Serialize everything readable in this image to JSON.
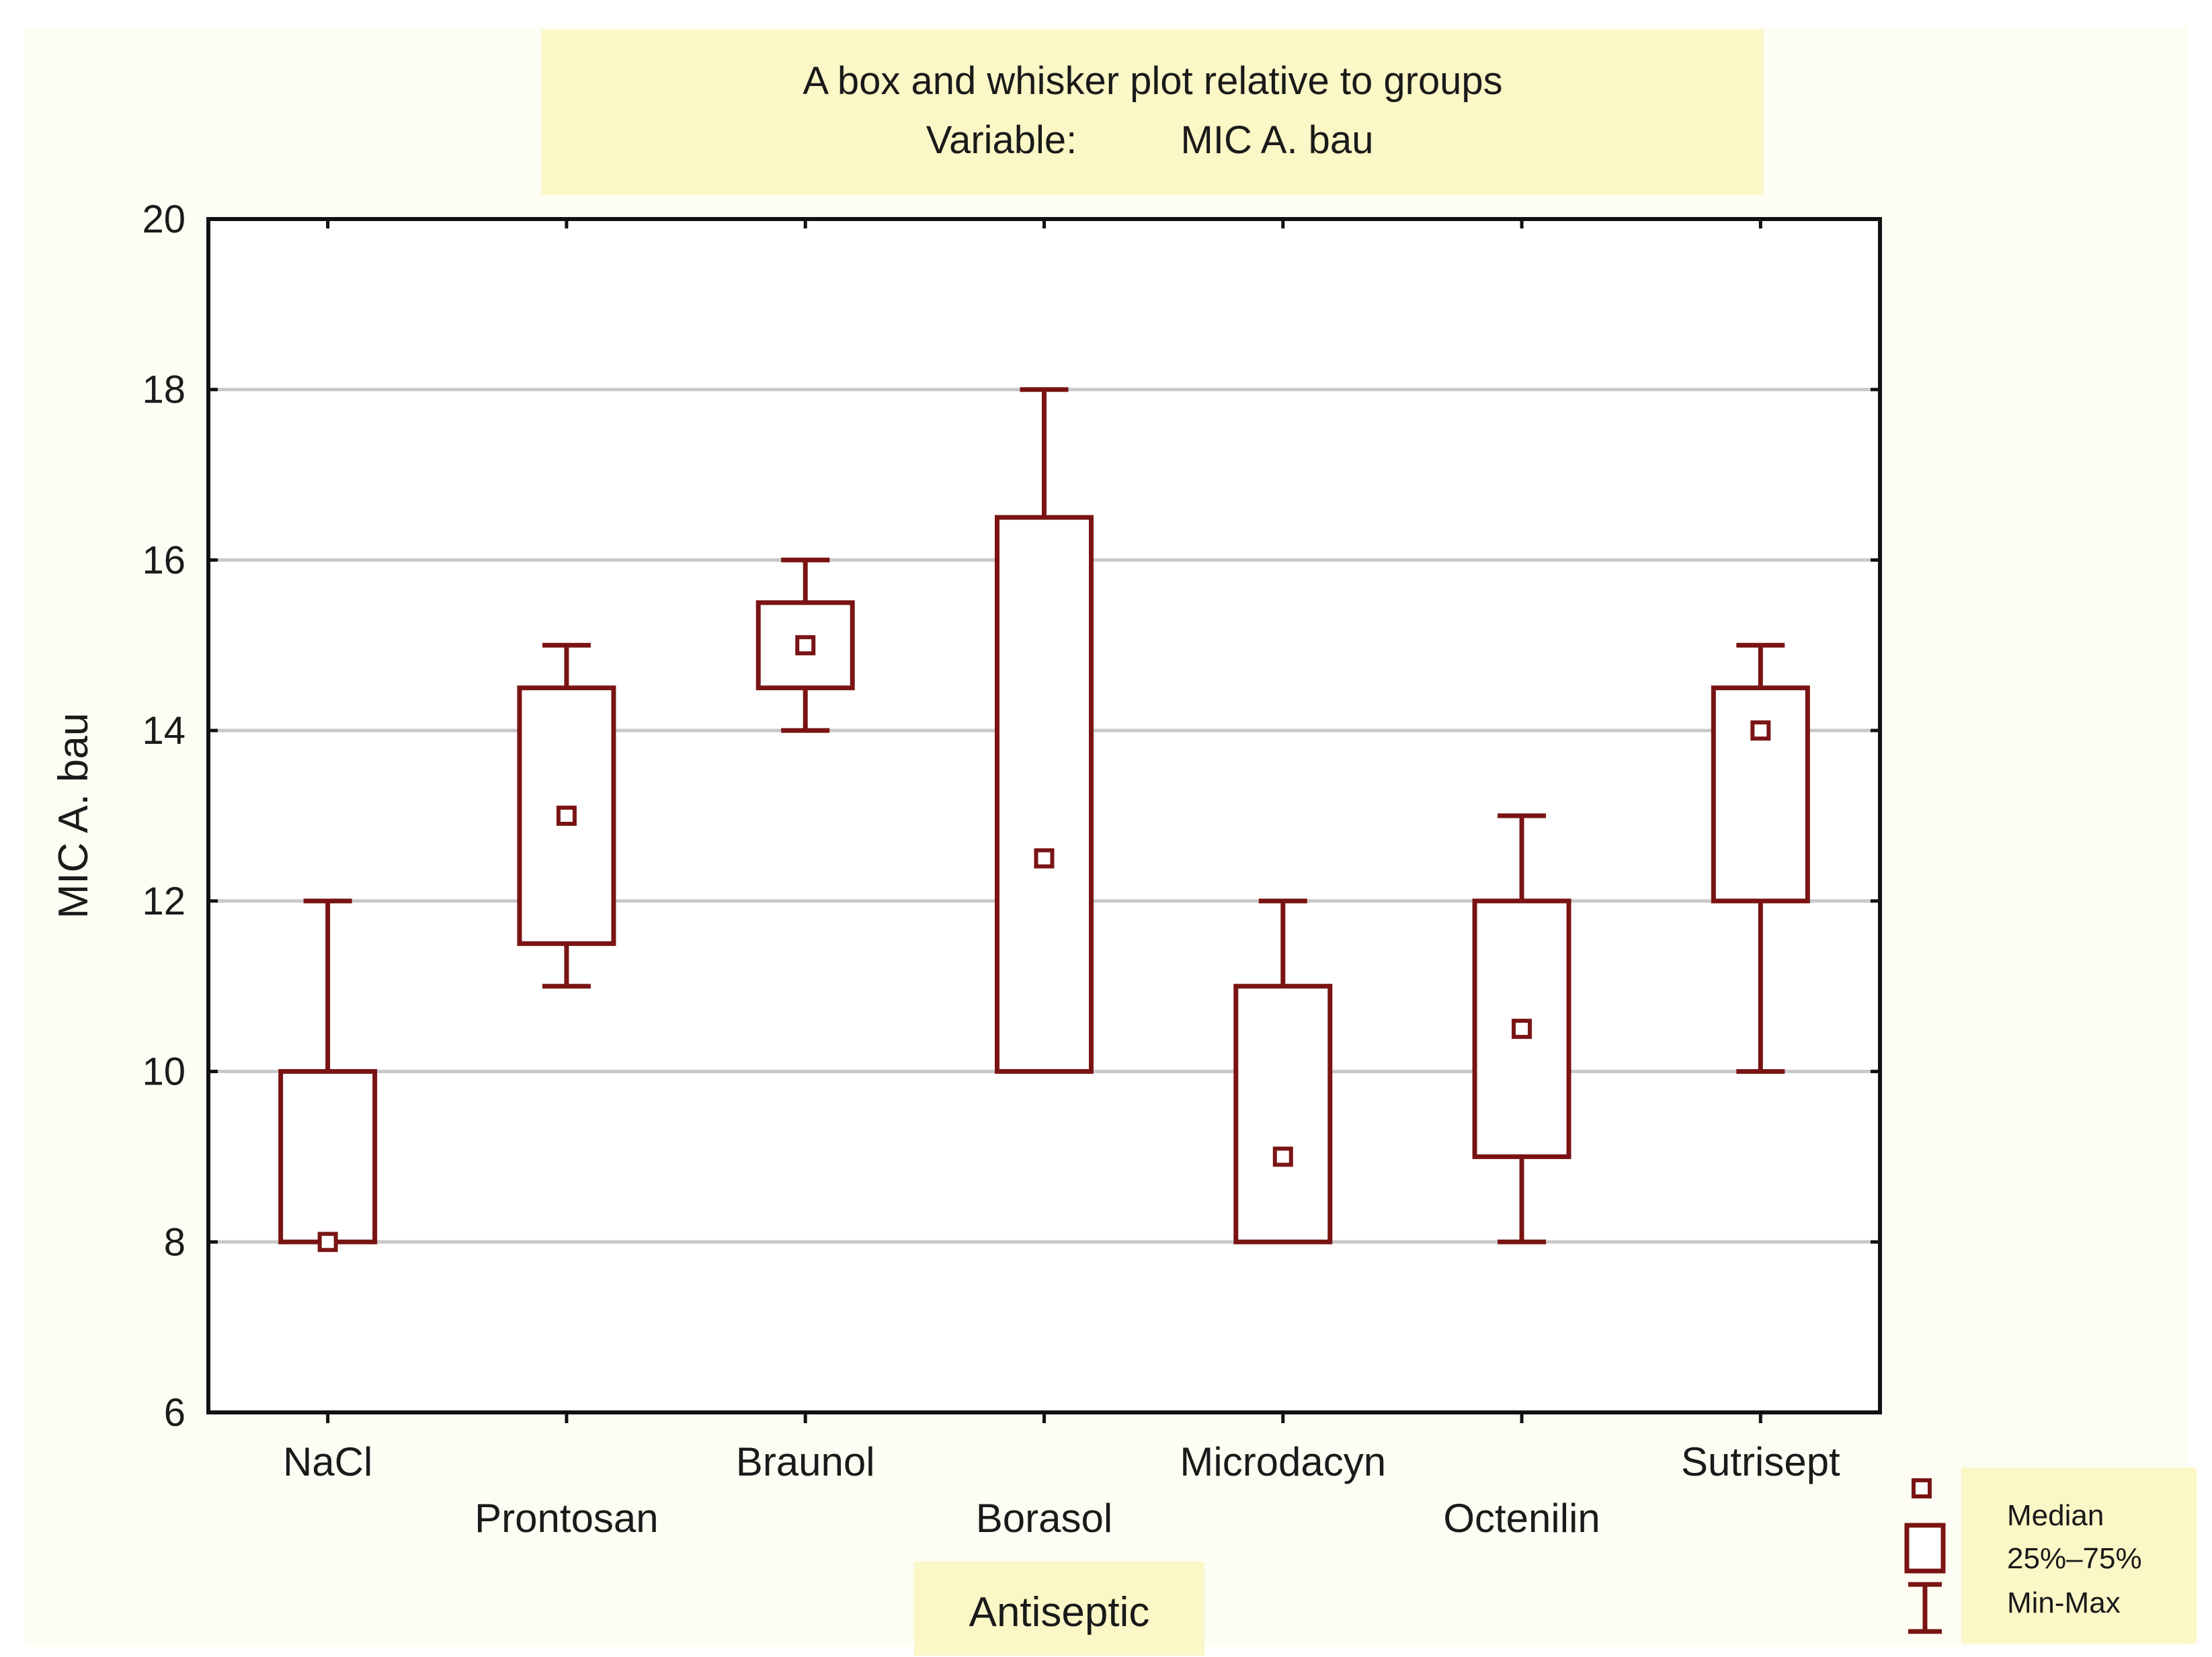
{
  "chart_data": {
    "type": "box",
    "title": "A box and whisker plot relative to groups",
    "subtitle_label": "Variable:",
    "subtitle_value": "MIC A. bau",
    "xlabel": "Antiseptic",
    "ylabel": "MIC A. bau",
    "ylim": [
      6,
      20
    ],
    "yticks": [
      "6",
      "8",
      "10",
      "12",
      "14",
      "16",
      "18",
      "20"
    ],
    "grid": true,
    "categories": [
      "NaCl",
      "Prontosan",
      "Braunol",
      "Borasol",
      "Microdacyn",
      "Octenilin",
      "Sutrisept"
    ],
    "series": [
      {
        "category": "NaCl",
        "min": 8,
        "q1": 8,
        "median": 8,
        "q3": 10,
        "max": 12
      },
      {
        "category": "Prontosan",
        "min": 11,
        "q1": 11.5,
        "median": 13,
        "q3": 14.5,
        "max": 15
      },
      {
        "category": "Braunol",
        "min": 14,
        "q1": 14.5,
        "median": 15,
        "q3": 15.5,
        "max": 16
      },
      {
        "category": "Borasol",
        "min": 10,
        "q1": 10,
        "median": 12.5,
        "q3": 16.5,
        "max": 18
      },
      {
        "category": "Microdacyn",
        "min": 8,
        "q1": 8,
        "median": 9,
        "q3": 11,
        "max": 12
      },
      {
        "category": "Octenilin",
        "min": 8,
        "q1": 9,
        "median": 10.5,
        "q3": 12,
        "max": 13
      },
      {
        "category": "Sutrisept",
        "min": 10,
        "q1": 12,
        "median": 14,
        "q3": 14.5,
        "max": 15
      }
    ],
    "legend": {
      "position": "bottom-right",
      "entries": [
        "Median",
        "25%–75%",
        "Min-Max"
      ]
    },
    "colors": {
      "box": "#7a1414",
      "frame": "#111111",
      "grid": "#c8c8c8",
      "highlight": "#fbf7c6",
      "canvas": "#fefdf3"
    }
  }
}
